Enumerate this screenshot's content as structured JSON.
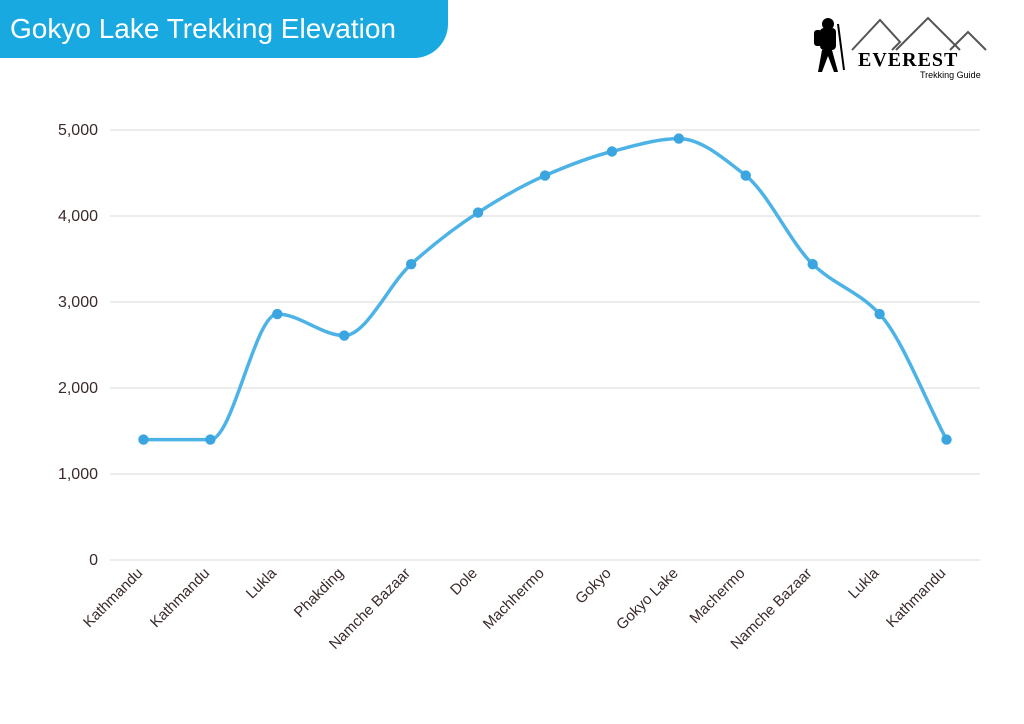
{
  "header": {
    "title": "Gokyo Lake Trekking Elevation",
    "title_bg": "#19a9e1",
    "title_color": "#ffffff",
    "title_fontsize": 28
  },
  "logo": {
    "brand_upper": "EVEREST",
    "brand_sub": "Trekking Guide",
    "figure_color": "#000000",
    "mountain_color": "#555555",
    "text_color": "#000000"
  },
  "chart": {
    "type": "line",
    "categories": [
      "Kathmandu",
      "Kathmandu",
      "Lukla",
      "Phakding",
      "Namche Bazaar",
      "Dole",
      "Machhermo",
      "Gokyo",
      "Gokyo Lake",
      "Machermo",
      "Namche Bazaar",
      "Lukla",
      "Kathmandu"
    ],
    "values": [
      1400,
      1400,
      2860,
      2610,
      3440,
      4040,
      4470,
      4750,
      4900,
      4470,
      3440,
      2860,
      1400
    ],
    "ylim": [
      0,
      5000
    ],
    "ytick_step": 1000,
    "yticks": [
      0,
      1000,
      2000,
      3000,
      4000,
      5000
    ],
    "ytick_labels": [
      "0",
      "1,000",
      "2,000",
      "3,000",
      "4,000",
      "5,000"
    ],
    "line_color": "#4db3e6",
    "point_color": "#3aa5df",
    "point_radius": 5.2,
    "line_width": 3.5,
    "grid_color": "#d9d9d9",
    "background_color": "#ffffff",
    "axis_text_color": "#3a2a2a",
    "xlabel_rotation_deg": -45,
    "smoothing": "monotone-cubic"
  }
}
